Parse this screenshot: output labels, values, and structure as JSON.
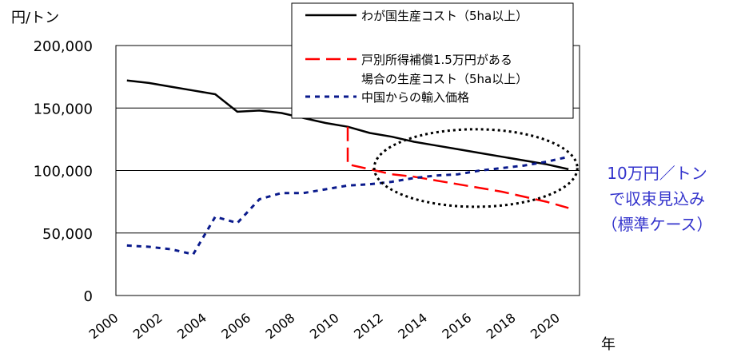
{
  "chart_data": {
    "type": "line",
    "title": "",
    "ylabel": "円/トン",
    "xlabel": "年",
    "ylim": [
      0,
      200000
    ],
    "xlim": [
      2000,
      2021
    ],
    "yticks": [
      0,
      50000,
      100000,
      150000,
      200000
    ],
    "ytick_labels": [
      "0",
      "50,000",
      "100,000",
      "150,000",
      "200,000"
    ],
    "xticks": [
      2000,
      2002,
      2004,
      2006,
      2008,
      2010,
      2012,
      2014,
      2016,
      2018,
      2020
    ],
    "xtick_labels": [
      "2000",
      "2002",
      "2004",
      "2006",
      "2008",
      "2010",
      "2012",
      "2014",
      "2016",
      "2018",
      "2020"
    ],
    "grid": "horizontal",
    "legend_position": "top-right",
    "series": [
      {
        "name": "わが国生産コスト（5ha以上）",
        "color": "#000000",
        "style": "solid",
        "x": [
          2000.5,
          2001.5,
          2002.5,
          2003.5,
          2004.5,
          2005.5,
          2006.5,
          2007.5,
          2008.5,
          2009.5,
          2010.5,
          2011.5,
          2012.5,
          2013.5,
          2014.5,
          2015.5,
          2016.5,
          2017.5,
          2018.5,
          2019.5,
          2020.5
        ],
        "y": [
          172000,
          170000,
          167000,
          164000,
          161000,
          147000,
          148000,
          146000,
          142000,
          138000,
          135000,
          130000,
          127000,
          123000,
          120000,
          117000,
          114000,
          111000,
          108000,
          105000,
          101000
        ]
      },
      {
        "name": "戸別所得補償1.5万円がある場合の生産コスト（5ha以上）",
        "color": "#ff0000",
        "style": "dashed",
        "x": [
          2010.5,
          2010.5,
          2011.5,
          2012.5,
          2013.5,
          2014.5,
          2015.5,
          2016.5,
          2017.5,
          2018.5,
          2019.5,
          2020.5
        ],
        "y": [
          135000,
          105000,
          101000,
          97000,
          95000,
          92000,
          89000,
          86000,
          83000,
          79000,
          75000,
          70000
        ]
      },
      {
        "name": "中国からの輸入価格",
        "color": "#0a1a8c",
        "style": "dotted",
        "x": [
          2000.5,
          2001.5,
          2002.5,
          2003.5,
          2004.5,
          2005.5,
          2006.5,
          2007.5,
          2008.5,
          2009.5,
          2010.5,
          2011.5,
          2012.5,
          2013.5,
          2014.5,
          2015.5,
          2016.5,
          2017.5,
          2018.5,
          2019.5,
          2020.5
        ],
        "y": [
          40000,
          39000,
          37000,
          33000,
          63000,
          58000,
          77000,
          82000,
          82000,
          85000,
          88000,
          89000,
          91000,
          94000,
          96000,
          97000,
          100000,
          102000,
          104000,
          107000,
          111000
        ]
      }
    ],
    "annotations": [
      {
        "kind": "ellipse",
        "color": "#000000",
        "cx": 2016.3,
        "cy": 102000,
        "rx": 4.6,
        "ry": 31000
      },
      {
        "kind": "text",
        "color": "#3333cc",
        "lines": [
          "10万円／トン",
          "で収束見込み",
          "（標準ケース）"
        ]
      }
    ]
  }
}
